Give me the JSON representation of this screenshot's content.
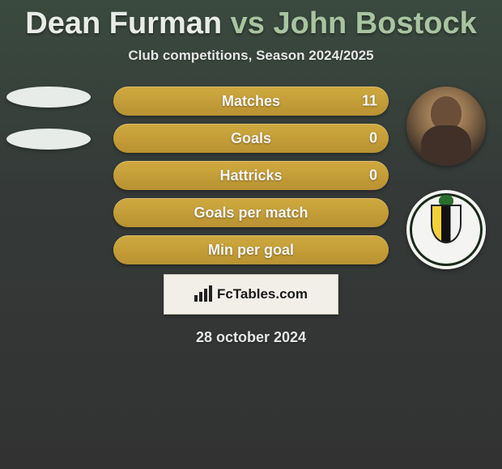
{
  "title": {
    "player1": "Dean Furman",
    "vs": "vs",
    "player2": "John Bostock"
  },
  "subtitle": "Club competitions, Season 2024/2025",
  "stats": [
    {
      "label": "Matches",
      "value_right": "11"
    },
    {
      "label": "Goals",
      "value_right": "0"
    },
    {
      "label": "Hattricks",
      "value_right": "0"
    },
    {
      "label": "Goals per match",
      "value_right": ""
    },
    {
      "label": "Min per goal",
      "value_right": ""
    }
  ],
  "branding": {
    "name": "FcTables.com"
  },
  "date": "28 october 2024",
  "colors": {
    "bar_bg": "#cfa93f",
    "bar_text": "#f5f5f5",
    "title_p1": "#e8ece9",
    "title_accent": "#a8c4a0",
    "page_bg_top": "#3a4a3f",
    "page_bg_bottom": "#323232",
    "footer_bg": "#f2efe8"
  }
}
